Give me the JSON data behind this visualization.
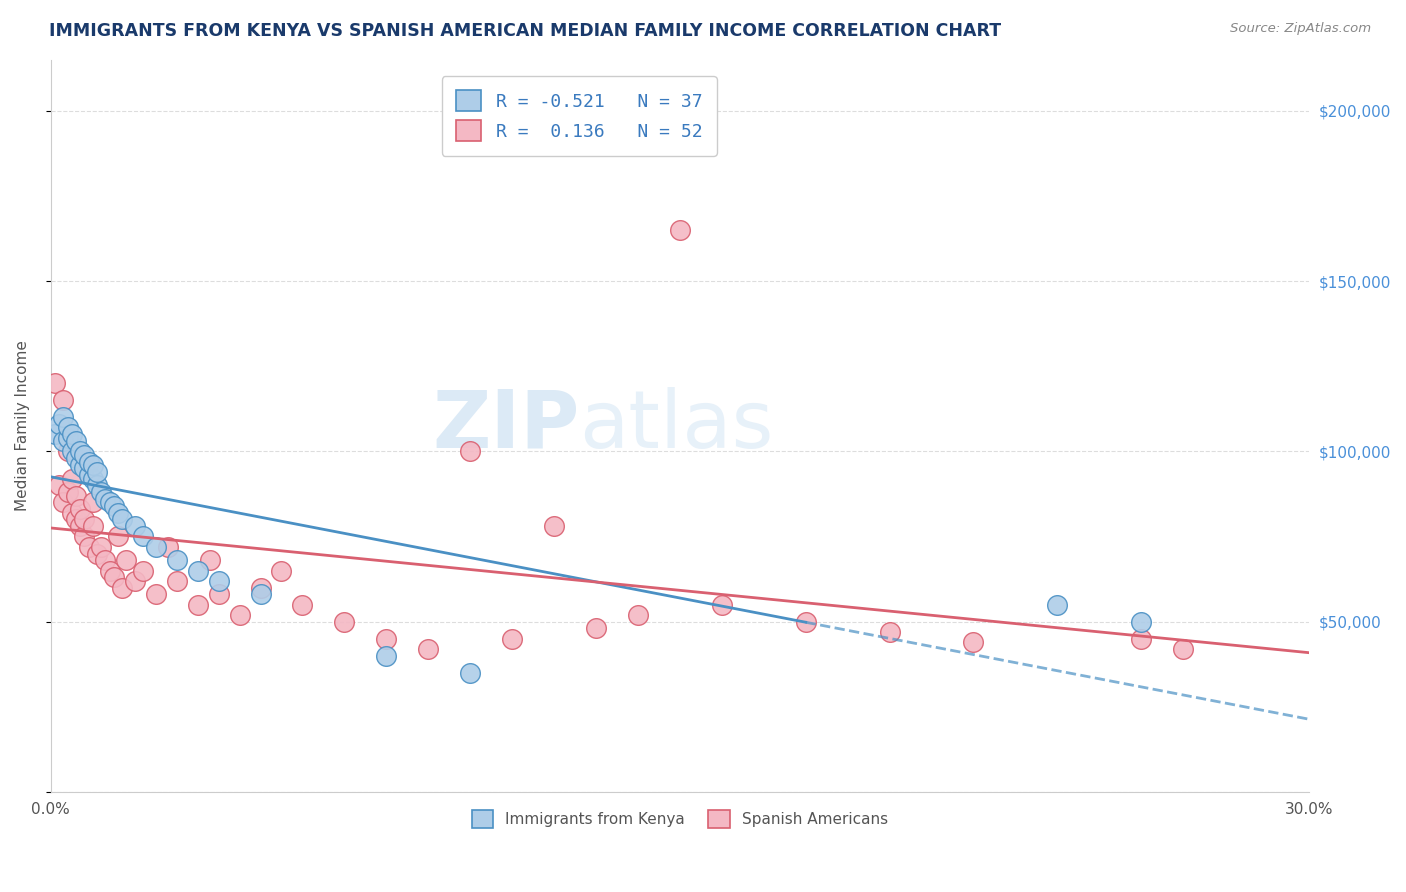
{
  "title": "IMMIGRANTS FROM KENYA VS SPANISH AMERICAN MEDIAN FAMILY INCOME CORRELATION CHART",
  "source_text": "Source: ZipAtlas.com",
  "ylabel": "Median Family Income",
  "xlim": [
    0.0,
    0.3
  ],
  "ylim": [
    0,
    215000
  ],
  "yticks": [
    0,
    50000,
    100000,
    150000,
    200000
  ],
  "xticks": [
    0.0,
    0.05,
    0.1,
    0.15,
    0.2,
    0.25,
    0.3
  ],
  "legend_entries": [
    {
      "label": "R = -0.521   N = 37",
      "facecolor": "#aecde8",
      "edgecolor": "#6aaed6"
    },
    {
      "label": "R =  0.136   N = 52",
      "facecolor": "#f4b8c4",
      "edgecolor": "#e8808a"
    }
  ],
  "legend_bottom_labels": [
    "Immigrants from Kenya",
    "Spanish Americans"
  ],
  "watermark_zip": "ZIP",
  "watermark_atlas": "atlas",
  "kenya_color": "#4a90c4",
  "kenya_face": "#aecde8",
  "spanish_color": "#d96070",
  "spanish_face": "#f4b8c4",
  "kenya_x": [
    0.001,
    0.002,
    0.003,
    0.003,
    0.004,
    0.004,
    0.005,
    0.005,
    0.006,
    0.006,
    0.007,
    0.007,
    0.008,
    0.008,
    0.009,
    0.009,
    0.01,
    0.01,
    0.011,
    0.011,
    0.012,
    0.013,
    0.014,
    0.015,
    0.016,
    0.017,
    0.02,
    0.022,
    0.025,
    0.03,
    0.035,
    0.04,
    0.05,
    0.08,
    0.1,
    0.24,
    0.26
  ],
  "kenya_y": [
    105000,
    108000,
    103000,
    110000,
    104000,
    107000,
    100000,
    105000,
    98000,
    103000,
    96000,
    100000,
    95000,
    99000,
    93000,
    97000,
    92000,
    96000,
    90000,
    94000,
    88000,
    86000,
    85000,
    84000,
    82000,
    80000,
    78000,
    75000,
    72000,
    68000,
    65000,
    62000,
    58000,
    40000,
    35000,
    55000,
    50000
  ],
  "spanish_x": [
    0.001,
    0.002,
    0.003,
    0.003,
    0.004,
    0.004,
    0.005,
    0.005,
    0.006,
    0.006,
    0.007,
    0.007,
    0.008,
    0.008,
    0.009,
    0.01,
    0.01,
    0.011,
    0.012,
    0.013,
    0.014,
    0.015,
    0.016,
    0.017,
    0.018,
    0.02,
    0.022,
    0.025,
    0.028,
    0.03,
    0.035,
    0.038,
    0.04,
    0.045,
    0.05,
    0.055,
    0.06,
    0.07,
    0.08,
    0.09,
    0.1,
    0.11,
    0.12,
    0.13,
    0.14,
    0.15,
    0.16,
    0.18,
    0.2,
    0.22,
    0.26,
    0.27
  ],
  "spanish_y": [
    120000,
    90000,
    85000,
    115000,
    88000,
    100000,
    82000,
    92000,
    80000,
    87000,
    78000,
    83000,
    75000,
    80000,
    72000,
    78000,
    85000,
    70000,
    72000,
    68000,
    65000,
    63000,
    75000,
    60000,
    68000,
    62000,
    65000,
    58000,
    72000,
    62000,
    55000,
    68000,
    58000,
    52000,
    60000,
    65000,
    55000,
    50000,
    45000,
    42000,
    100000,
    45000,
    78000,
    48000,
    52000,
    165000,
    55000,
    50000,
    47000,
    44000,
    45000,
    42000
  ]
}
